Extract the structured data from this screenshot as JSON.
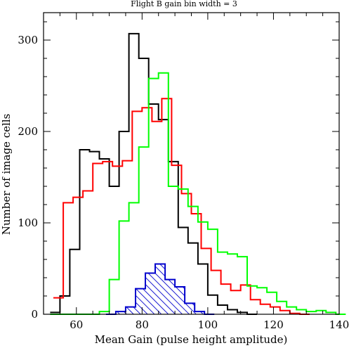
{
  "chart_data": {
    "type": "step-histogram",
    "title": "Flight B gain    bin width = 3",
    "xlabel": "Mean Gain (pulse height amplitude)",
    "ylabel": "Number of image cells",
    "xlim": [
      50,
      140
    ],
    "ylim": [
      0,
      330
    ],
    "x_ticks": [
      60,
      80,
      100,
      120,
      140
    ],
    "x_tick_labels": [
      "60",
      "80",
      "100",
      "120",
      "140"
    ],
    "y_ticks": [
      0,
      100,
      200,
      300
    ],
    "y_tick_labels": [
      "0",
      "100",
      "200",
      "300"
    ],
    "grid": false,
    "series": [
      {
        "color": "#000000",
        "fill": "none",
        "steps": [
          [
            52,
            2
          ],
          [
            55,
            20
          ],
          [
            58,
            71
          ],
          [
            61,
            180
          ],
          [
            64,
            178
          ],
          [
            67,
            170
          ],
          [
            70,
            140
          ],
          [
            73,
            200
          ],
          [
            76,
            307
          ],
          [
            79,
            280
          ],
          [
            82,
            230
          ],
          [
            85,
            213
          ],
          [
            88,
            167
          ],
          [
            91,
            95
          ],
          [
            94,
            78
          ],
          [
            97,
            55
          ],
          [
            100,
            21
          ],
          [
            103,
            10
          ],
          [
            106,
            5
          ],
          [
            109,
            2
          ],
          [
            112,
            0
          ]
        ]
      },
      {
        "color": "#ff0000",
        "fill": "none",
        "steps": [
          [
            53,
            18
          ],
          [
            56,
            122
          ],
          [
            59,
            128
          ],
          [
            62,
            135
          ],
          [
            65,
            165
          ],
          [
            68,
            167
          ],
          [
            71,
            162
          ],
          [
            74,
            168
          ],
          [
            77,
            222
          ],
          [
            80,
            226
          ],
          [
            83,
            211
          ],
          [
            86,
            236
          ],
          [
            89,
            163
          ],
          [
            92,
            132
          ],
          [
            95,
            110
          ],
          [
            98,
            72
          ],
          [
            101,
            48
          ],
          [
            104,
            33
          ],
          [
            107,
            26
          ],
          [
            110,
            32
          ],
          [
            113,
            16
          ],
          [
            116,
            11
          ],
          [
            119,
            8
          ],
          [
            122,
            4
          ],
          [
            125,
            1
          ],
          [
            128,
            0
          ]
        ]
      },
      {
        "color": "#00ff00",
        "fill": "none",
        "steps": [
          [
            52,
            0
          ],
          [
            55,
            0
          ],
          [
            58,
            0
          ],
          [
            61,
            0
          ],
          [
            64,
            0
          ],
          [
            67,
            3
          ],
          [
            70,
            38
          ],
          [
            73,
            102
          ],
          [
            76,
            122
          ],
          [
            79,
            183
          ],
          [
            82,
            258
          ],
          [
            85,
            264
          ],
          [
            88,
            140
          ],
          [
            91,
            137
          ],
          [
            94,
            118
          ],
          [
            97,
            101
          ],
          [
            100,
            93
          ],
          [
            103,
            68
          ],
          [
            106,
            66
          ],
          [
            109,
            63
          ],
          [
            112,
            31
          ],
          [
            115,
            29
          ],
          [
            118,
            24
          ],
          [
            121,
            14
          ],
          [
            124,
            8
          ],
          [
            127,
            5
          ],
          [
            130,
            3
          ],
          [
            133,
            4
          ],
          [
            136,
            2
          ],
          [
            139,
            0
          ]
        ]
      },
      {
        "color": "#0000cc",
        "fill": "hatch",
        "steps": [
          [
            69,
            0
          ],
          [
            72,
            3
          ],
          [
            75,
            8
          ],
          [
            78,
            28
          ],
          [
            81,
            45
          ],
          [
            84,
            55
          ],
          [
            87,
            38
          ],
          [
            90,
            30
          ],
          [
            93,
            12
          ],
          [
            96,
            3
          ],
          [
            99,
            0
          ]
        ]
      }
    ]
  }
}
